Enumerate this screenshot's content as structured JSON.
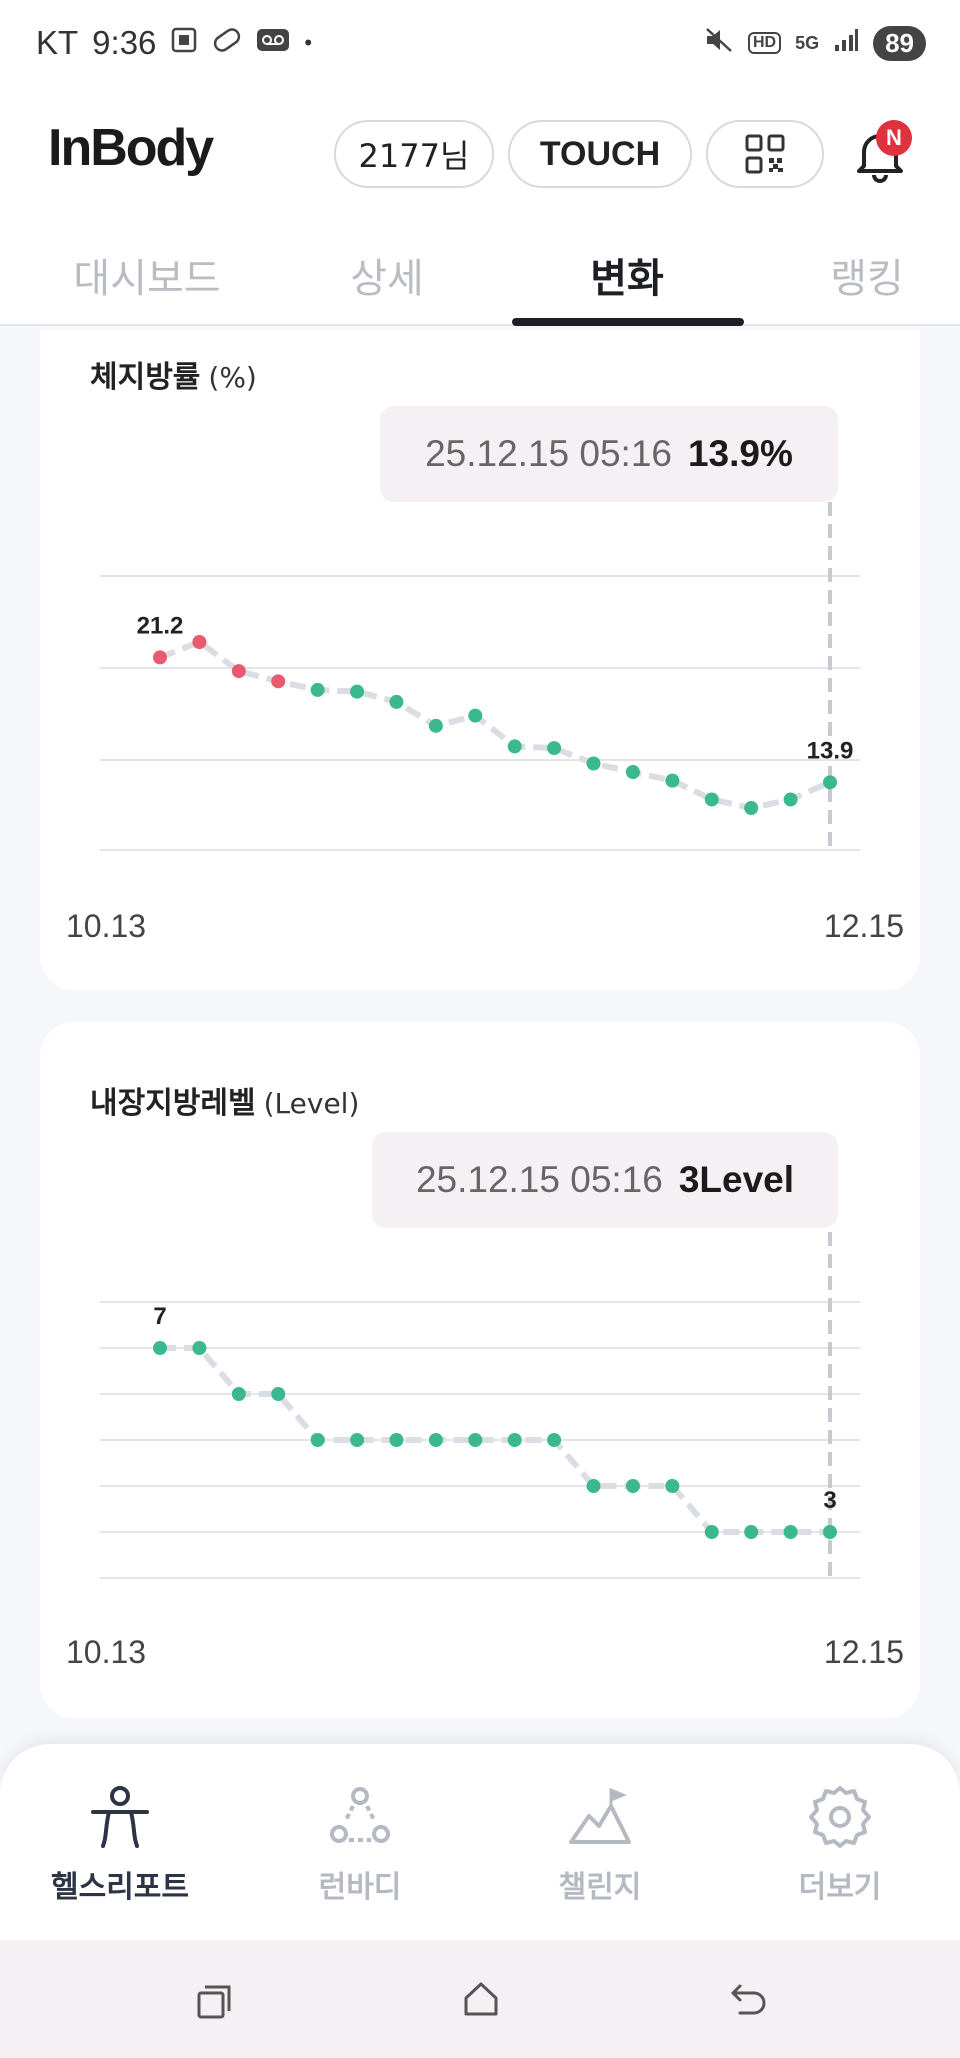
{
  "status_bar": {
    "carrier": "KT",
    "time": "9:36",
    "icons_left": [
      "screenshot-icon",
      "pill-icon",
      "voicemail-icon"
    ],
    "icons_right": [
      "mute-icon",
      "hd-icon",
      "5g-icon",
      "signal-icon"
    ],
    "hd_label": "HD",
    "net_label": "5G",
    "battery": "89"
  },
  "header": {
    "logo": "InBody",
    "user_label": "2177님",
    "touch_label": "TOUCH",
    "notification_badge": "N"
  },
  "tabs": [
    {
      "label": "대시보드",
      "active": false
    },
    {
      "label": "상세",
      "active": false
    },
    {
      "label": "변화",
      "active": true
    },
    {
      "label": "랭킹",
      "active": false
    }
  ],
  "body_fat_card": {
    "title": "체지방률",
    "unit": "(%)",
    "tooltip_date": "25.12.15 05:16",
    "tooltip_value": "13.9%",
    "x_start": "10.13",
    "x_end": "12.15",
    "chart_data": {
      "type": "line",
      "series": [
        {
          "values": [
            21.2,
            22.1,
            20.4,
            19.8,
            19.3,
            19.2,
            18.6,
            17.2,
            17.8,
            16.0,
            15.9,
            15.0,
            14.5,
            14.0,
            12.9,
            12.4,
            12.9,
            13.9
          ]
        }
      ],
      "labels": {
        "first": "21.2",
        "last": "13.9"
      },
      "point_colors": [
        "#e85a6e",
        "#e85a6e",
        "#e85a6e",
        "#e85a6e",
        "#3cb88f",
        "#3cb88f",
        "#3cb88f",
        "#3cb88f",
        "#3cb88f",
        "#3cb88f",
        "#3cb88f",
        "#3cb88f",
        "#3cb88f",
        "#3cb88f",
        "#3cb88f",
        "#3cb88f",
        "#3cb88f",
        "#3cb88f"
      ],
      "grid": true
    }
  },
  "visceral_fat_card": {
    "title": "내장지방레벨",
    "unit": "(Level)",
    "tooltip_date": "25.12.15 05:16",
    "tooltip_value": "3Level",
    "x_start": "10.13",
    "x_end": "12.15",
    "chart_data": {
      "type": "line",
      "series": [
        {
          "values": [
            7,
            7,
            6,
            6,
            5,
            5,
            5,
            5,
            5,
            5,
            5,
            4,
            4,
            4,
            3,
            3,
            3,
            3
          ]
        }
      ],
      "labels": {
        "first": "7",
        "last": "3"
      },
      "point_color": "#3cb88f",
      "grid": true
    }
  },
  "bottom_nav": [
    {
      "label": "헬스리포트",
      "icon": "health-report-icon",
      "active": true
    },
    {
      "label": "런바디",
      "icon": "runbody-icon",
      "active": false
    },
    {
      "label": "챌린지",
      "icon": "challenge-icon",
      "active": false
    },
    {
      "label": "더보기",
      "icon": "gear-icon",
      "active": false
    }
  ],
  "colors": {
    "accent_green": "#3cb88f",
    "accent_red": "#e85a6e",
    "line": "#d9dce2",
    "badge": "#e0323c"
  }
}
